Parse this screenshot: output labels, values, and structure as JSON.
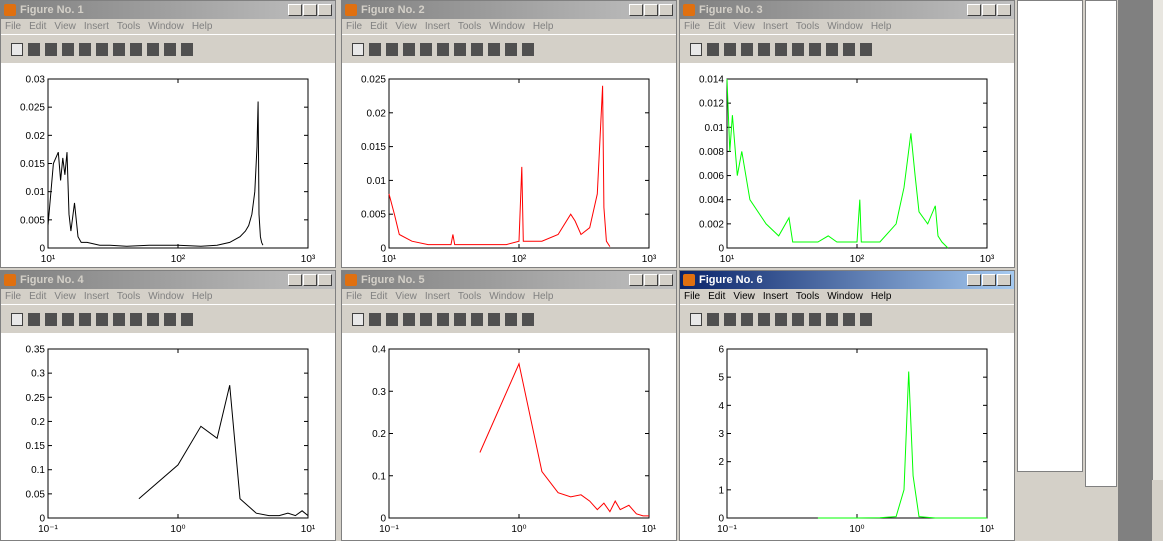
{
  "menu": [
    "File",
    "Edit",
    "View",
    "Insert",
    "Tools",
    "Window",
    "Help"
  ],
  "windows": [
    {
      "title": "Figure No. 1",
      "active": false,
      "chart_data": {
        "type": "line",
        "xscale": "log",
        "xlim": [
          10,
          1000
        ],
        "ylim": [
          0,
          0.03
        ],
        "xticks": [
          {
            "value": 10,
            "label": "10¹"
          },
          {
            "value": 100,
            "label": "10²"
          },
          {
            "value": 1000,
            "label": "10³"
          }
        ],
        "yticks": [
          0,
          0.005,
          0.01,
          0.015,
          0.02,
          0.025,
          0.03
        ],
        "series": [
          {
            "color": "#000000",
            "x": [
              10,
              11,
              12,
              12.5,
              13,
              13.5,
              14,
              14.5,
              15,
              16,
              17,
              18,
              20,
              25,
              30,
              40,
              60,
              80,
              100,
              150,
              200,
              250,
              300,
              330,
              350,
              370,
              390,
              405,
              413,
              420,
              430,
              440,
              450
            ],
            "values": [
              0.004,
              0.015,
              0.017,
              0.012,
              0.016,
              0.013,
              0.017,
              0.006,
              0.003,
              0.008,
              0.002,
              0.001,
              0.001,
              0.0005,
              0.0005,
              0.0003,
              0.0005,
              0.0005,
              0.0005,
              0.0003,
              0.0005,
              0.001,
              0.002,
              0.003,
              0.004,
              0.006,
              0.01,
              0.018,
              0.026,
              0.006,
              0.002,
              0.001,
              0.0005
            ]
          }
        ]
      }
    },
    {
      "title": "Figure No. 2",
      "active": false,
      "chart_data": {
        "type": "line",
        "xscale": "log",
        "xlim": [
          10,
          1000
        ],
        "ylim": [
          0,
          0.025
        ],
        "xticks": [
          {
            "value": 10,
            "label": "10¹"
          },
          {
            "value": 100,
            "label": "10²"
          },
          {
            "value": 1000,
            "label": "10³"
          }
        ],
        "yticks": [
          0,
          0.005,
          0.01,
          0.015,
          0.02,
          0.025
        ],
        "series": [
          {
            "color": "#ff0000",
            "x": [
              10,
              11,
              12,
              15,
              20,
              30,
              31,
              32,
              50,
              80,
              100,
              105,
              108,
              150,
              200,
              250,
              270,
              300,
              350,
              400,
              440,
              450,
              470,
              500
            ],
            "values": [
              0.008,
              0.005,
              0.002,
              0.001,
              0.0005,
              0.0005,
              0.002,
              0.0005,
              0.0005,
              0.0005,
              0.001,
              0.012,
              0.001,
              0.001,
              0.002,
              0.005,
              0.004,
              0.002,
              0.003,
              0.008,
              0.024,
              0.006,
              0.001,
              0.0002
            ]
          }
        ]
      }
    },
    {
      "title": "Figure No. 3",
      "active": false,
      "chart_data": {
        "type": "line",
        "xscale": "log",
        "xlim": [
          10,
          1000
        ],
        "ylim": [
          0,
          0.014
        ],
        "xticks": [
          {
            "value": 10,
            "label": "10¹"
          },
          {
            "value": 100,
            "label": "10²"
          },
          {
            "value": 1000,
            "label": "10³"
          }
        ],
        "yticks": [
          0,
          0.002,
          0.004,
          0.006,
          0.008,
          0.01,
          0.012,
          0.014
        ],
        "series": [
          {
            "color": "#00ff00",
            "x": [
              10,
              10.5,
              11,
              12,
              13,
              15,
              20,
              25,
              30,
              32,
              50,
              60,
              70,
              100,
              105,
              108,
              150,
              200,
              230,
              260,
              280,
              300,
              350,
              400,
              420,
              450,
              500
            ],
            "values": [
              0.014,
              0.008,
              0.011,
              0.006,
              0.008,
              0.004,
              0.002,
              0.001,
              0.0025,
              0.0005,
              0.0005,
              0.001,
              0.0005,
              0.0005,
              0.004,
              0.0005,
              0.0005,
              0.002,
              0.005,
              0.0095,
              0.006,
              0.003,
              0.002,
              0.0035,
              0.001,
              0.0005,
              0
            ]
          }
        ]
      }
    },
    {
      "title": "Figure No. 4",
      "active": false,
      "chart_data": {
        "type": "line",
        "xscale": "log",
        "xlim": [
          0.1,
          10
        ],
        "ylim": [
          0,
          0.35
        ],
        "xticks": [
          {
            "value": 0.1,
            "label": "10⁻¹"
          },
          {
            "value": 1,
            "label": "10⁰"
          },
          {
            "value": 10,
            "label": "10¹"
          }
        ],
        "yticks": [
          0,
          0.05,
          0.1,
          0.15,
          0.2,
          0.25,
          0.3,
          0.35
        ],
        "series": [
          {
            "color": "#000000",
            "x": [
              0.5,
              1,
              1.5,
              2,
              2.5,
              3,
              4,
              5,
              6,
              7,
              8,
              9,
              10
            ],
            "values": [
              0.04,
              0.11,
              0.19,
              0.165,
              0.275,
              0.04,
              0.01,
              0.005,
              0.005,
              0.01,
              0.005,
              0.015,
              0.005
            ]
          }
        ]
      }
    },
    {
      "title": "Figure No. 5",
      "active": false,
      "chart_data": {
        "type": "line",
        "xscale": "log",
        "xlim": [
          0.1,
          10
        ],
        "ylim": [
          0,
          0.4
        ],
        "xticks": [
          {
            "value": 0.1,
            "label": "10⁻¹"
          },
          {
            "value": 1,
            "label": "10⁰"
          },
          {
            "value": 10,
            "label": "10¹"
          }
        ],
        "yticks": [
          0,
          0.1,
          0.2,
          0.3,
          0.4
        ],
        "series": [
          {
            "color": "#ff0000",
            "x": [
              0.5,
              1,
              1.5,
              2,
              2.5,
              3,
              3.5,
              4,
              4.5,
              5,
              5.5,
              6,
              7,
              8,
              9,
              10
            ],
            "values": [
              0.155,
              0.365,
              0.11,
              0.06,
              0.05,
              0.055,
              0.04,
              0.02,
              0.035,
              0.015,
              0.04,
              0.02,
              0.03,
              0.01,
              0.005,
              0.005
            ]
          }
        ]
      }
    },
    {
      "title": "Figure No. 6",
      "active": true,
      "chart_data": {
        "type": "line",
        "xscale": "log",
        "xlim": [
          0.1,
          10
        ],
        "ylim": [
          0,
          6
        ],
        "xticks": [
          {
            "value": 0.1,
            "label": "10⁻¹"
          },
          {
            "value": 1,
            "label": "10⁰"
          },
          {
            "value": 10,
            "label": "10¹"
          }
        ],
        "yticks": [
          0,
          1,
          2,
          3,
          4,
          5,
          6
        ],
        "series": [
          {
            "color": "#00ff00",
            "x": [
              0.5,
              1,
              1.5,
              2,
              2.3,
              2.5,
              2.7,
              3,
              4,
              5,
              7,
              10
            ],
            "values": [
              0,
              0,
              0.01,
              0.05,
              1,
              5.2,
              1.5,
              0.05,
              0,
              0,
              0,
              0
            ]
          }
        ]
      }
    }
  ]
}
